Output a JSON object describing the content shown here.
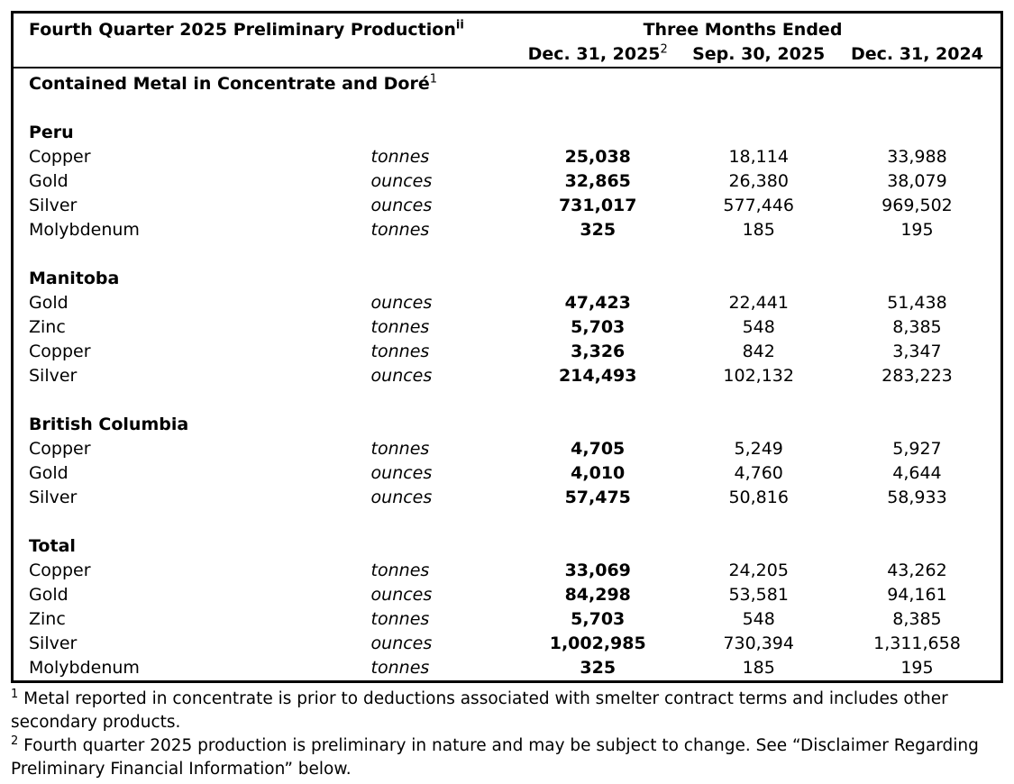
{
  "table": {
    "title": "Fourth Quarter 2025 Preliminary Production",
    "title_superscript": "ii",
    "period_header": "Three Months Ended",
    "columns": [
      {
        "label": "Dec. 31, 2025",
        "superscript": "2"
      },
      {
        "label": "Sep. 30, 2025"
      },
      {
        "label": "Dec. 31, 2024"
      }
    ],
    "section_header": "Contained Metal in Concentrate and Doré",
    "section_superscript": "1",
    "groups": [
      {
        "name": "Peru",
        "rows": [
          {
            "metal": "Copper",
            "unit": "tonnes",
            "values": [
              "25,038",
              "18,114",
              "33,988"
            ]
          },
          {
            "metal": "Gold",
            "unit": "ounces",
            "values": [
              "32,865",
              "26,380",
              "38,079"
            ]
          },
          {
            "metal": "Silver",
            "unit": "ounces",
            "values": [
              "731,017",
              "577,446",
              "969,502"
            ]
          },
          {
            "metal": "Molybdenum",
            "unit": "tonnes",
            "values": [
              "325",
              "185",
              "195"
            ]
          }
        ]
      },
      {
        "name": "Manitoba",
        "rows": [
          {
            "metal": "Gold",
            "unit": "ounces",
            "values": [
              "47,423",
              "22,441",
              "51,438"
            ]
          },
          {
            "metal": "Zinc",
            "unit": "tonnes",
            "values": [
              "5,703",
              "548",
              "8,385"
            ]
          },
          {
            "metal": "Copper",
            "unit": "tonnes",
            "values": [
              "3,326",
              "842",
              "3,347"
            ]
          },
          {
            "metal": "Silver",
            "unit": "ounces",
            "values": [
              "214,493",
              "102,132",
              "283,223"
            ]
          }
        ]
      },
      {
        "name": "British Columbia",
        "rows": [
          {
            "metal": "Copper",
            "unit": "tonnes",
            "values": [
              "4,705",
              "5,249",
              "5,927"
            ]
          },
          {
            "metal": "Gold",
            "unit": "ounces",
            "values": [
              "4,010",
              "4,760",
              "4,644"
            ]
          },
          {
            "metal": "Silver",
            "unit": "ounces",
            "values": [
              "57,475",
              "50,816",
              "58,933"
            ]
          }
        ]
      },
      {
        "name": "Total",
        "rows": [
          {
            "metal": "Copper",
            "unit": "tonnes",
            "values": [
              "33,069",
              "24,205",
              "43,262"
            ]
          },
          {
            "metal": "Gold",
            "unit": "ounces",
            "values": [
              "84,298",
              "53,581",
              "94,161"
            ]
          },
          {
            "metal": "Zinc",
            "unit": "tonnes",
            "values": [
              "5,703",
              "548",
              "8,385"
            ]
          },
          {
            "metal": "Silver",
            "unit": "ounces",
            "values": [
              "1,002,985",
              "730,394",
              "1,311,658"
            ]
          },
          {
            "metal": "Molybdenum",
            "unit": "tonnes",
            "values": [
              "325",
              "185",
              "195"
            ]
          }
        ]
      }
    ]
  },
  "footnotes": [
    {
      "marker": "1",
      "text": "Metal reported in concentrate is prior to deductions associated with smelter contract terms and includes other secondary products."
    },
    {
      "marker": "2",
      "text": "Fourth quarter 2025 production is preliminary in nature and may be subject to change. See “Disclaimer Regarding Preliminary Financial Information” below."
    }
  ],
  "colors": {
    "text": "#000000",
    "background": "#ffffff",
    "border": "#000000"
  }
}
